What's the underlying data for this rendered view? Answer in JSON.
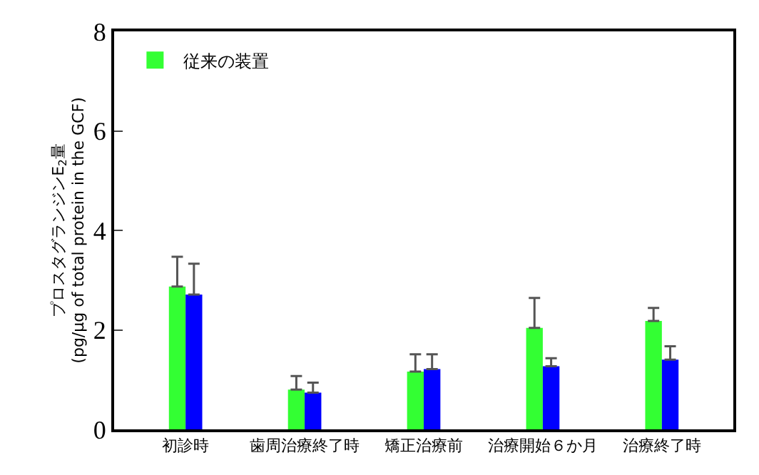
{
  "chart_data": {
    "type": "bar",
    "ylabel": "プロスタグランジンE$_{2}$量\n(pg/μg of total protein in the GCF)",
    "categories": [
      "初診時",
      "歯周治療終了時",
      "矯正治療前",
      "治療開始６か月",
      "治療終了時"
    ],
    "series": [
      {
        "name": "従来の装置",
        "color": "#33ff33",
        "values": [
          2.87,
          0.8,
          1.16,
          2.04,
          2.18
        ],
        "errors": [
          [
            2.87,
            3.47
          ],
          [
            0.8,
            1.07
          ],
          [
            1.16,
            1.51
          ],
          [
            2.04,
            2.64
          ],
          [
            2.18,
            2.44
          ]
        ]
      },
      {
        "color": "#0000ff",
        "values": [
          2.71,
          0.74,
          1.21,
          1.27,
          1.4
        ],
        "errors": [
          [
            2.71,
            3.33
          ],
          [
            0.74,
            0.94
          ],
          [
            1.21,
            1.51
          ],
          [
            1.27,
            1.43
          ],
          [
            1.4,
            1.67
          ]
        ]
      }
    ],
    "ylim": [
      0,
      8
    ],
    "yticks": [
      0,
      2,
      4,
      6,
      8
    ],
    "legend": "top left"
  }
}
